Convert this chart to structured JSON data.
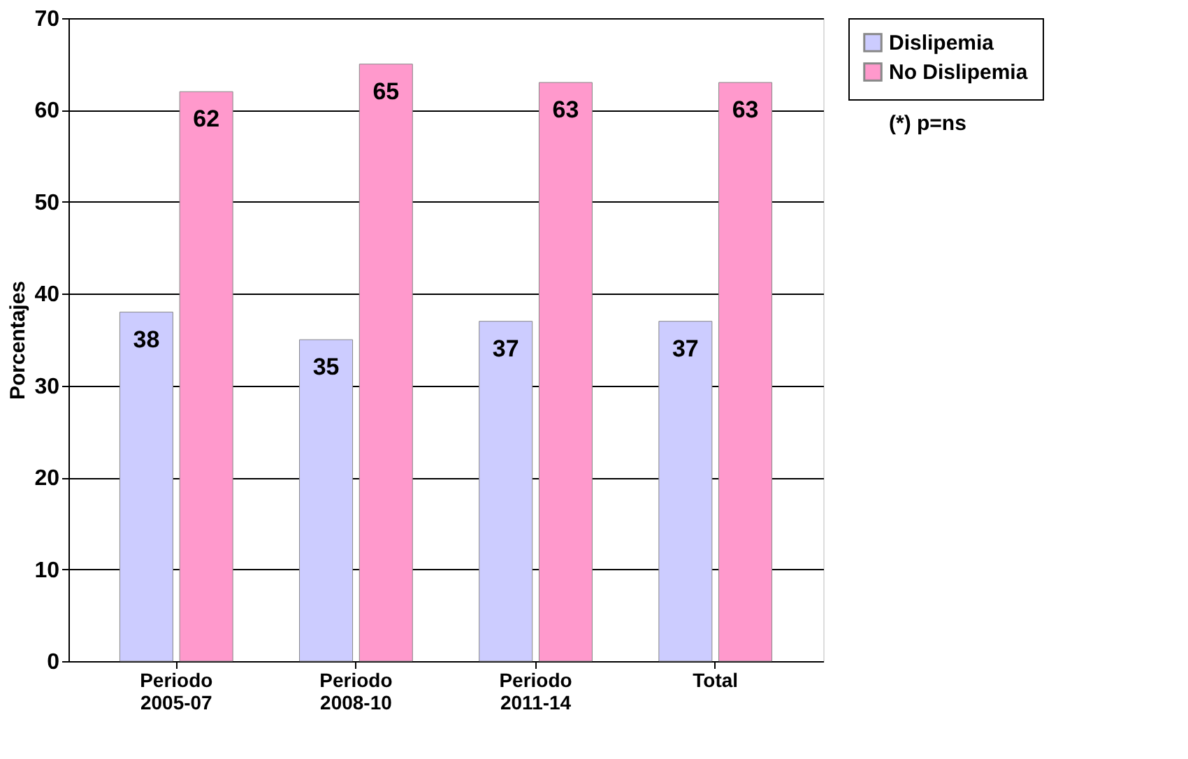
{
  "chart_data": {
    "type": "bar",
    "ylabel": "Porcentajes",
    "categories": [
      "Periodo 2005-07",
      "Periodo 2008-10",
      "Periodo 2011-14",
      "Total"
    ],
    "series": [
      {
        "name": "Dislipemia",
        "color": "#ccccff",
        "values": [
          38,
          35,
          37,
          37
        ]
      },
      {
        "name": "No Dislipemia",
        "color": "#ff99cc",
        "values": [
          62,
          65,
          63,
          63
        ]
      }
    ],
    "ylim": [
      0,
      70
    ],
    "yticks": [
      0,
      10,
      20,
      30,
      40,
      50,
      60,
      70
    ],
    "grid": "y",
    "legend": "top right",
    "data_labels": true,
    "annotations": [
      "(*) p=ns"
    ]
  }
}
